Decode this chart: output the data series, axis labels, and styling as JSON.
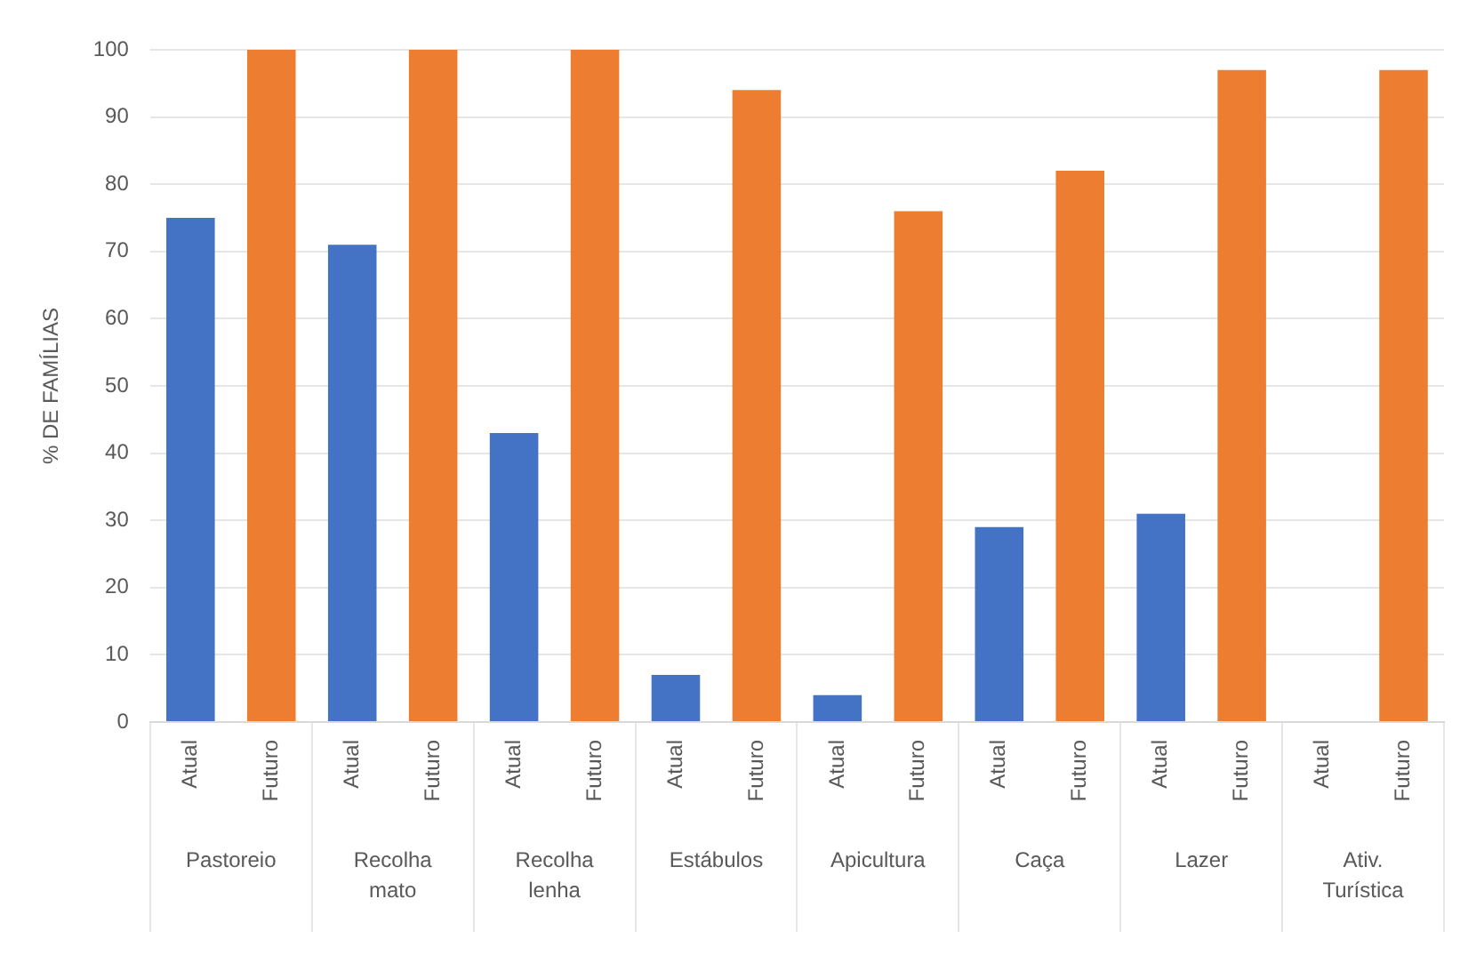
{
  "chart_data": {
    "type": "bar",
    "ylabel": "% DE FAMÍLIAS",
    "categories": [
      "Pastoreio",
      "Recolha mato",
      "Recolha lenha",
      "Estábulos",
      "Apicultura",
      "Caça",
      "Lazer",
      "Ativ. Turística"
    ],
    "series": [
      {
        "name": "Atual",
        "color": "#4472c4",
        "values": [
          75,
          71,
          43,
          7,
          4,
          29,
          31,
          0
        ]
      },
      {
        "name": "Futuro",
        "color": "#ed7d31",
        "values": [
          100,
          100,
          100,
          94,
          76,
          82,
          97,
          97
        ]
      }
    ],
    "ylim": [
      0,
      100
    ],
    "yticks": [
      0,
      10,
      20,
      30,
      40,
      50,
      60,
      70,
      80,
      90,
      100
    ],
    "grid": "y",
    "legend": false
  }
}
